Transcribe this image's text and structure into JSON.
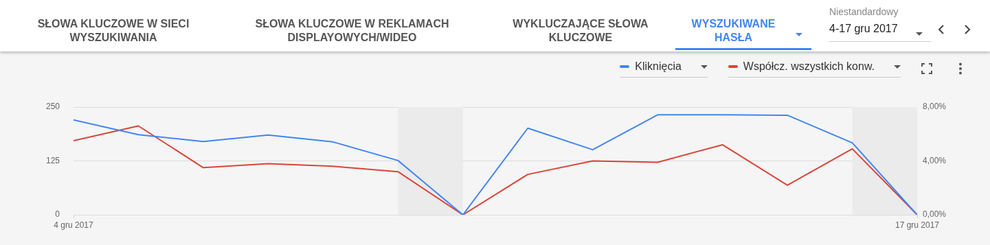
{
  "chart_data": {
    "type": "line",
    "annotations": [
      "SŁOWA KLUCZOWE W SIECI WYSZUKIWANIA",
      "SŁOWA KLUCZOWE W REKLAMACH DISPLAYOWYCH/WIDEO",
      "WYKLUCZAJĄCE SŁOWA KLUCZOWE",
      "WYSZUKIWANE HASŁA",
      "Niestandardowy",
      "4-17 gru 2017"
    ],
    "x": [
      "2017-12-04",
      "2017-12-05",
      "2017-12-06",
      "2017-12-07",
      "2017-12-08",
      "2017-12-09",
      "2017-12-10",
      "2017-12-11",
      "2017-12-12",
      "2017-12-13",
      "2017-12-14",
      "2017-12-15",
      "2017-12-16",
      "2017-12-17"
    ],
    "series": [
      {
        "name": "Kliknięcia",
        "color": "#4285f4",
        "values": [
          220,
          186,
          170,
          185,
          169,
          126,
          0,
          201,
          151,
          232,
          232,
          231,
          167,
          0
        ]
      },
      {
        "name": "Współcz. wszystkich konw.",
        "color": "#db4437",
        "axis": "y2",
        "values": [
          5.5,
          6.6,
          3.5,
          3.8,
          3.6,
          3.2,
          0,
          3.0,
          4.0,
          3.9,
          5.2,
          2.2,
          4.9,
          0
        ]
      }
    ],
    "xlim": [
      "2017-12-04",
      "2017-12-17"
    ],
    "xticks": [
      {
        "value": "2017-12-04",
        "label": "4 gru 2017"
      },
      {
        "value": "2017-12-17",
        "label": "17 gru 2017"
      }
    ],
    "ylim": [
      0,
      250
    ],
    "yticks": [
      0,
      125,
      250
    ],
    "y2lim": [
      0,
      8
    ],
    "y2ticks": [
      {
        "value": 0,
        "label": "0,00%"
      },
      {
        "value": 4,
        "label": "4,00%"
      },
      {
        "value": 8,
        "label": "8,00%"
      }
    ],
    "bands": [
      {
        "axis": "x",
        "from": "2017-12-09",
        "to": "2017-12-10",
        "color": "#ebebeb"
      },
      {
        "axis": "x",
        "from": "2017-12-16",
        "to": "2017-12-17",
        "color": "#ebebeb"
      }
    ],
    "grid": "y",
    "legend": "top right",
    "marker": "none",
    "line_style": "solid"
  }
}
